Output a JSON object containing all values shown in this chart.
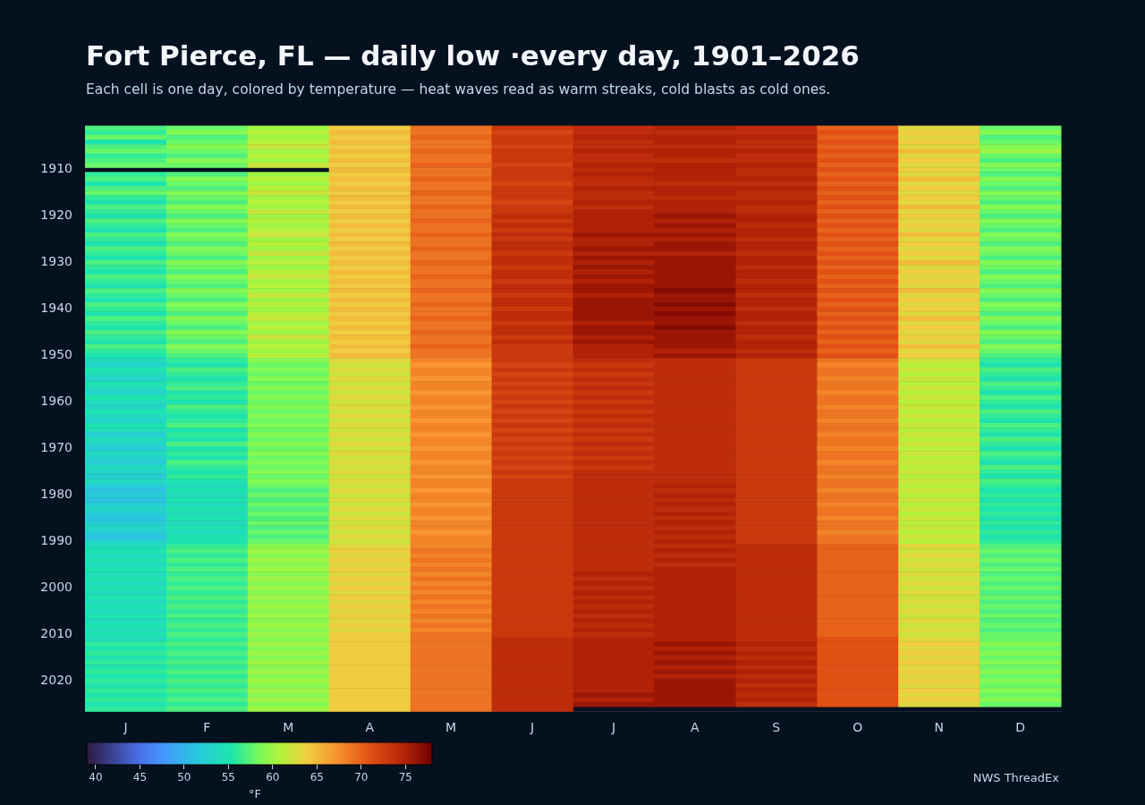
{
  "chart_data": {
    "type": "heatmap",
    "title": "Fort Pierce, FL — daily low ·every day, 1901–2026",
    "subtitle": "Each cell is one day, colored by temperature — heat waves read as warm streaks, cold blasts as cold ones.",
    "categories": [
      "J",
      "F",
      "M",
      "A",
      "M",
      "J",
      "J",
      "A",
      "S",
      "O",
      "N",
      "D"
    ],
    "y_categories": [
      null,
      null,
      null,
      null,
      null,
      null,
      null,
      null,
      null,
      "1910",
      null,
      null,
      null,
      null,
      null,
      null,
      null,
      null,
      null,
      "1920",
      null,
      null,
      null,
      null,
      null,
      null,
      null,
      null,
      null,
      "1930",
      null,
      null,
      null,
      null,
      null,
      null,
      null,
      null,
      null,
      "1940",
      null,
      null,
      null,
      null,
      null,
      null,
      null,
      null,
      null,
      "1950",
      null,
      null,
      null,
      null,
      null,
      null,
      null,
      null,
      null,
      "1960",
      null,
      null,
      null,
      null,
      null,
      null,
      null,
      null,
      null,
      "1970",
      null,
      null,
      null,
      null,
      null,
      null,
      null,
      null,
      null,
      "1980",
      null,
      null,
      null,
      null,
      null,
      null,
      null,
      null,
      null,
      "1990",
      null,
      null,
      null,
      null,
      null,
      null,
      null,
      null,
      null,
      "2000",
      null,
      null,
      null,
      null,
      null,
      null,
      null,
      null,
      null,
      "2010",
      null,
      null,
      null,
      null,
      null,
      null,
      null,
      null,
      null,
      "2020",
      null,
      null,
      null,
      null,
      null,
      null
    ],
    "cells": [
      [
        57,
        58,
        60,
        64,
        69,
        73,
        74,
        75,
        74,
        70,
        63,
        58
      ],
      [
        56,
        59,
        61,
        65,
        69,
        72,
        74,
        74,
        74,
        71,
        64,
        59
      ],
      [
        58,
        57,
        60,
        64,
        70,
        73,
        75,
        75,
        75,
        70,
        63,
        57
      ],
      [
        55,
        58,
        61,
        65,
        69,
        73,
        74,
        75,
        74,
        71,
        64,
        58
      ],
      [
        57,
        59,
        62,
        64,
        69,
        72,
        74,
        74,
        74,
        70,
        63,
        59
      ],
      [
        58,
        58,
        60,
        65,
        70,
        73,
        75,
        75,
        75,
        71,
        65,
        60
      ],
      [
        56,
        57,
        61,
        64,
        69,
        73,
        74,
        75,
        74,
        70,
        63,
        58
      ],
      [
        57,
        59,
        60,
        65,
        69,
        73,
        74,
        74,
        74,
        71,
        64,
        57
      ],
      [
        58,
        58,
        62,
        64,
        70,
        72,
        75,
        75,
        75,
        70,
        63,
        59
      ],
      [
        null,
        null,
        null,
        65,
        69,
        73,
        74,
        75,
        74,
        71,
        64,
        58
      ],
      [
        56,
        57,
        60,
        64,
        69,
        73,
        75,
        75,
        74,
        70,
        63,
        57
      ],
      [
        57,
        59,
        61,
        65,
        70,
        73,
        74,
        75,
        75,
        71,
        65,
        59
      ],
      [
        55,
        58,
        60,
        64,
        69,
        72,
        74,
        74,
        74,
        70,
        63,
        58
      ],
      [
        57,
        57,
        61,
        65,
        69,
        73,
        75,
        75,
        75,
        71,
        64,
        57
      ],
      [
        58,
        59,
        62,
        64,
        70,
        73,
        74,
        75,
        74,
        70,
        63,
        59
      ],
      [
        56,
        58,
        60,
        65,
        69,
        73,
        74,
        74,
        74,
        71,
        64,
        58
      ],
      [
        55,
        57,
        61,
        64,
        69,
        72,
        75,
        75,
        75,
        70,
        63,
        57
      ],
      [
        57,
        59,
        60,
        65,
        70,
        73,
        74,
        75,
        74,
        71,
        65,
        59
      ],
      [
        56,
        58,
        62,
        64,
        69,
        73,
        75,
        75,
        74,
        70,
        63,
        58
      ],
      [
        55,
        57,
        60,
        65,
        69,
        74,
        75,
        76,
        75,
        71,
        64,
        57
      ],
      [
        57,
        59,
        61,
        64,
        70,
        73,
        75,
        75,
        75,
        70,
        63,
        59
      ],
      [
        56,
        58,
        60,
        65,
        69,
        74,
        75,
        76,
        74,
        71,
        64,
        58
      ],
      [
        55,
        57,
        61,
        64,
        69,
        73,
        75,
        75,
        75,
        70,
        63,
        57
      ],
      [
        57,
        59,
        62,
        65,
        70,
        74,
        76,
        76,
        75,
        71,
        65,
        59
      ],
      [
        56,
        58,
        60,
        64,
        69,
        73,
        75,
        75,
        74,
        70,
        63,
        58
      ],
      [
        55,
        57,
        61,
        65,
        69,
        74,
        75,
        76,
        75,
        71,
        64,
        57
      ],
      [
        57,
        59,
        60,
        64,
        70,
        74,
        76,
        76,
        75,
        70,
        63,
        59
      ],
      [
        56,
        58,
        62,
        65,
        69,
        73,
        75,
        75,
        74,
        71,
        64,
        58
      ],
      [
        55,
        57,
        60,
        64,
        69,
        74,
        76,
        76,
        75,
        70,
        63,
        57
      ],
      [
        57,
        59,
        61,
        65,
        70,
        74,
        75,
        76,
        75,
        71,
        65,
        59
      ],
      [
        56,
        58,
        60,
        64,
        69,
        73,
        76,
        76,
        74,
        70,
        63,
        58
      ],
      [
        55,
        57,
        61,
        65,
        69,
        74,
        75,
        76,
        75,
        71,
        64,
        57
      ],
      [
        57,
        59,
        62,
        64,
        70,
        74,
        76,
        76,
        75,
        70,
        63,
        59
      ],
      [
        56,
        58,
        60,
        65,
        69,
        73,
        75,
        76,
        74,
        71,
        64,
        58
      ],
      [
        55,
        57,
        61,
        64,
        69,
        74,
        76,
        76,
        75,
        70,
        63,
        57
      ],
      [
        57,
        59,
        60,
        65,
        70,
        74,
        76,
        77,
        75,
        71,
        65,
        59
      ],
      [
        56,
        58,
        62,
        64,
        69,
        73,
        75,
        76,
        74,
        70,
        63,
        58
      ],
      [
        55,
        57,
        60,
        65,
        69,
        74,
        76,
        76,
        75,
        71,
        64,
        57
      ],
      [
        57,
        59,
        61,
        64,
        70,
        74,
        76,
        77,
        75,
        70,
        63,
        59
      ],
      [
        56,
        58,
        60,
        65,
        69,
        73,
        76,
        76,
        74,
        71,
        64,
        58
      ],
      [
        55,
        57,
        61,
        64,
        69,
        74,
        76,
        77,
        75,
        70,
        63,
        57
      ],
      [
        57,
        59,
        62,
        65,
        70,
        74,
        76,
        76,
        75,
        71,
        65,
        59
      ],
      [
        56,
        58,
        60,
        64,
        69,
        73,
        75,
        76,
        74,
        70,
        63,
        58
      ],
      [
        55,
        57,
        61,
        65,
        69,
        74,
        76,
        77,
        75,
        71,
        64,
        57
      ],
      [
        57,
        59,
        60,
        64,
        70,
        74,
        76,
        76,
        75,
        70,
        63,
        59
      ],
      [
        56,
        58,
        62,
        65,
        69,
        73,
        75,
        76,
        74,
        71,
        64,
        58
      ],
      [
        55,
        57,
        60,
        64,
        69,
        74,
        76,
        76,
        75,
        70,
        63,
        57
      ],
      [
        57,
        59,
        61,
        65,
        70,
        73,
        75,
        76,
        75,
        71,
        65,
        59
      ],
      [
        56,
        58,
        60,
        64,
        69,
        73,
        75,
        75,
        74,
        70,
        63,
        58
      ],
      [
        55,
        57,
        61,
        65,
        69,
        73,
        75,
        76,
        75,
        71,
        64,
        57
      ],
      [
        54,
        56,
        59,
        63,
        68,
        73,
        74,
        74,
        73,
        69,
        62,
        56
      ],
      [
        53,
        55,
        58,
        62,
        67,
        72,
        73,
        74,
        73,
        68,
        61,
        55
      ],
      [
        55,
        57,
        59,
        63,
        68,
        73,
        74,
        74,
        73,
        69,
        62,
        57
      ],
      [
        54,
        56,
        58,
        62,
        68,
        72,
        73,
        74,
        73,
        69,
        61,
        56
      ],
      [
        53,
        55,
        59,
        63,
        67,
        73,
        74,
        74,
        73,
        68,
        62,
        55
      ],
      [
        55,
        56,
        58,
        62,
        68,
        72,
        73,
        74,
        73,
        69,
        61,
        57
      ],
      [
        54,
        57,
        59,
        63,
        68,
        73,
        74,
        74,
        73,
        69,
        62,
        56
      ],
      [
        53,
        55,
        58,
        62,
        67,
        72,
        73,
        74,
        73,
        68,
        61,
        55
      ],
      [
        55,
        56,
        59,
        63,
        68,
        73,
        74,
        74,
        73,
        69,
        62,
        57
      ],
      [
        54,
        55,
        58,
        62,
        68,
        72,
        73,
        74,
        73,
        69,
        61,
        56
      ],
      [
        53,
        57,
        59,
        63,
        67,
        73,
        74,
        74,
        73,
        68,
        62,
        55
      ],
      [
        55,
        56,
        58,
        62,
        68,
        72,
        73,
        74,
        73,
        69,
        61,
        57
      ],
      [
        54,
        55,
        59,
        63,
        68,
        73,
        74,
        74,
        73,
        69,
        62,
        56
      ],
      [
        53,
        56,
        58,
        62,
        67,
        72,
        73,
        74,
        73,
        68,
        61,
        55
      ],
      [
        55,
        57,
        59,
        63,
        68,
        73,
        74,
        74,
        73,
        69,
        62,
        57
      ],
      [
        54,
        55,
        58,
        62,
        68,
        72,
        73,
        74,
        73,
        69,
        61,
        56
      ],
      [
        52,
        56,
        59,
        63,
        67,
        73,
        74,
        74,
        73,
        68,
        62,
        55
      ],
      [
        54,
        55,
        58,
        62,
        68,
        72,
        73,
        74,
        73,
        69,
        61,
        57
      ],
      [
        53,
        57,
        59,
        63,
        68,
        73,
        74,
        74,
        73,
        69,
        62,
        56
      ],
      [
        52,
        55,
        58,
        62,
        67,
        72,
        73,
        74,
        73,
        68,
        61,
        55
      ],
      [
        54,
        56,
        59,
        63,
        68,
        73,
        74,
        74,
        73,
        69,
        62,
        57
      ],
      [
        53,
        55,
        58,
        62,
        68,
        72,
        73,
        74,
        73,
        69,
        61,
        56
      ],
      [
        52,
        57,
        59,
        63,
        67,
        73,
        74,
        74,
        73,
        68,
        62,
        55
      ],
      [
        54,
        56,
        58,
        62,
        68,
        72,
        73,
        74,
        73,
        69,
        61,
        57
      ],
      [
        53,
        55,
        59,
        63,
        68,
        73,
        74,
        74,
        73,
        69,
        62,
        56
      ],
      [
        52,
        56,
        58,
        62,
        67,
        72,
        74,
        74,
        73,
        68,
        61,
        55
      ],
      [
        54,
        55,
        59,
        63,
        68,
        73,
        74,
        74,
        73,
        69,
        62,
        57
      ],
      [
        52,
        54,
        58,
        62,
        68,
        73,
        74,
        75,
        73,
        69,
        61,
        56
      ],
      [
        51,
        55,
        57,
        63,
        67,
        73,
        74,
        74,
        73,
        68,
        62,
        55
      ],
      [
        52,
        54,
        58,
        62,
        68,
        73,
        74,
        75,
        73,
        69,
        61,
        56
      ],
      [
        51,
        55,
        57,
        63,
        68,
        73,
        74,
        74,
        73,
        69,
        62,
        55
      ],
      [
        52,
        54,
        58,
        62,
        67,
        73,
        74,
        75,
        73,
        68,
        61,
        56
      ],
      [
        53,
        55,
        57,
        63,
        68,
        73,
        74,
        74,
        73,
        69,
        62,
        55
      ],
      [
        52,
        54,
        58,
        62,
        68,
        73,
        74,
        75,
        73,
        69,
        61,
        56
      ],
      [
        51,
        55,
        57,
        63,
        67,
        73,
        74,
        74,
        73,
        68,
        62,
        55
      ],
      [
        52,
        54,
        58,
        62,
        68,
        73,
        74,
        75,
        73,
        69,
        61,
        56
      ],
      [
        53,
        55,
        57,
        63,
        68,
        73,
        74,
        74,
        73,
        69,
        62,
        55
      ],
      [
        52,
        54,
        58,
        62,
        67,
        73,
        74,
        75,
        73,
        68,
        61,
        56
      ],
      [
        51,
        55,
        57,
        63,
        68,
        73,
        74,
        74,
        73,
        69,
        62,
        55
      ],
      [
        53,
        55,
        58,
        62,
        68,
        73,
        74,
        75,
        73,
        69,
        61,
        56
      ],
      [
        54,
        56,
        59,
        63,
        68,
        73,
        74,
        74,
        74,
        70,
        63,
        57
      ],
      [
        55,
        57,
        60,
        64,
        69,
        73,
        74,
        75,
        74,
        70,
        62,
        58
      ],
      [
        54,
        56,
        59,
        63,
        68,
        73,
        74,
        74,
        74,
        70,
        63,
        57
      ],
      [
        55,
        57,
        60,
        64,
        69,
        73,
        74,
        75,
        74,
        70,
        62,
        58
      ],
      [
        54,
        56,
        59,
        63,
        68,
        73,
        74,
        74,
        74,
        70,
        63,
        57
      ],
      [
        55,
        57,
        60,
        64,
        69,
        73,
        74,
        75,
        74,
        70,
        62,
        58
      ],
      [
        54,
        56,
        59,
        63,
        68,
        73,
        75,
        75,
        74,
        70,
        63,
        57
      ],
      [
        55,
        57,
        60,
        64,
        69,
        73,
        74,
        75,
        74,
        70,
        62,
        58
      ],
      [
        54,
        56,
        59,
        63,
        68,
        73,
        75,
        75,
        74,
        70,
        63,
        57
      ],
      [
        55,
        57,
        60,
        64,
        69,
        73,
        74,
        75,
        74,
        70,
        62,
        58
      ],
      [
        54,
        56,
        59,
        63,
        68,
        73,
        75,
        75,
        74,
        70,
        63,
        57
      ],
      [
        55,
        57,
        60,
        64,
        69,
        73,
        74,
        75,
        74,
        70,
        62,
        58
      ],
      [
        54,
        56,
        59,
        63,
        68,
        73,
        75,
        75,
        74,
        70,
        63,
        57
      ],
      [
        55,
        57,
        60,
        64,
        69,
        73,
        74,
        75,
        74,
        70,
        62,
        58
      ],
      [
        54,
        56,
        59,
        63,
        68,
        73,
        75,
        75,
        74,
        70,
        63,
        57
      ],
      [
        55,
        57,
        60,
        64,
        69,
        73,
        74,
        75,
        74,
        70,
        62,
        58
      ],
      [
        54,
        56,
        59,
        63,
        68,
        73,
        75,
        75,
        74,
        70,
        63,
        57
      ],
      [
        55,
        57,
        60,
        64,
        69,
        73,
        74,
        75,
        74,
        70,
        62,
        58
      ],
      [
        54,
        56,
        59,
        63,
        68,
        73,
        75,
        75,
        74,
        70,
        63,
        57
      ],
      [
        55,
        57,
        60,
        64,
        69,
        73,
        74,
        75,
        74,
        70,
        62,
        58
      ],
      [
        54,
        56,
        59,
        64,
        69,
        74,
        75,
        75,
        74,
        71,
        63,
        58
      ],
      [
        56,
        57,
        60,
        64,
        69,
        74,
        75,
        76,
        75,
        71,
        64,
        59
      ],
      [
        55,
        56,
        59,
        64,
        69,
        74,
        75,
        75,
        74,
        71,
        63,
        58
      ],
      [
        56,
        57,
        60,
        64,
        69,
        74,
        75,
        76,
        75,
        71,
        64,
        59
      ],
      [
        55,
        56,
        59,
        64,
        69,
        74,
        75,
        75,
        74,
        71,
        63,
        58
      ],
      [
        56,
        57,
        60,
        64,
        69,
        74,
        75,
        76,
        75,
        71,
        64,
        59
      ],
      [
        55,
        56,
        59,
        64,
        69,
        74,
        75,
        75,
        74,
        71,
        63,
        58
      ],
      [
        56,
        57,
        60,
        64,
        69,
        74,
        75,
        76,
        75,
        71,
        64,
        59
      ],
      [
        55,
        56,
        59,
        64,
        69,
        74,
        75,
        75,
        74,
        71,
        63,
        58
      ],
      [
        56,
        57,
        60,
        64,
        69,
        74,
        75,
        76,
        75,
        71,
        64,
        59
      ],
      [
        55,
        56,
        59,
        64,
        69,
        74,
        75,
        76,
        74,
        71,
        63,
        58
      ],
      [
        56,
        57,
        60,
        64,
        69,
        74,
        75,
        76,
        75,
        71,
        64,
        59
      ],
      [
        55,
        56,
        59,
        64,
        69,
        74,
        76,
        76,
        74,
        71,
        63,
        58
      ],
      [
        56,
        57,
        60,
        64,
        69,
        74,
        75,
        76,
        75,
        71,
        64,
        59
      ],
      [
        55,
        56,
        59,
        64,
        69,
        74,
        76,
        76,
        74,
        71,
        63,
        58
      ],
      [
        56,
        57,
        60,
        64,
        69,
        74,
        null,
        null,
        null,
        null,
        null,
        null
      ]
    ],
    "clim": [
      39,
      78
    ],
    "cticks": [
      40,
      45,
      50,
      55,
      60,
      65,
      70,
      75
    ],
    "clabel": "°F",
    "annotations": [
      "NWS ThreadEx"
    ]
  }
}
